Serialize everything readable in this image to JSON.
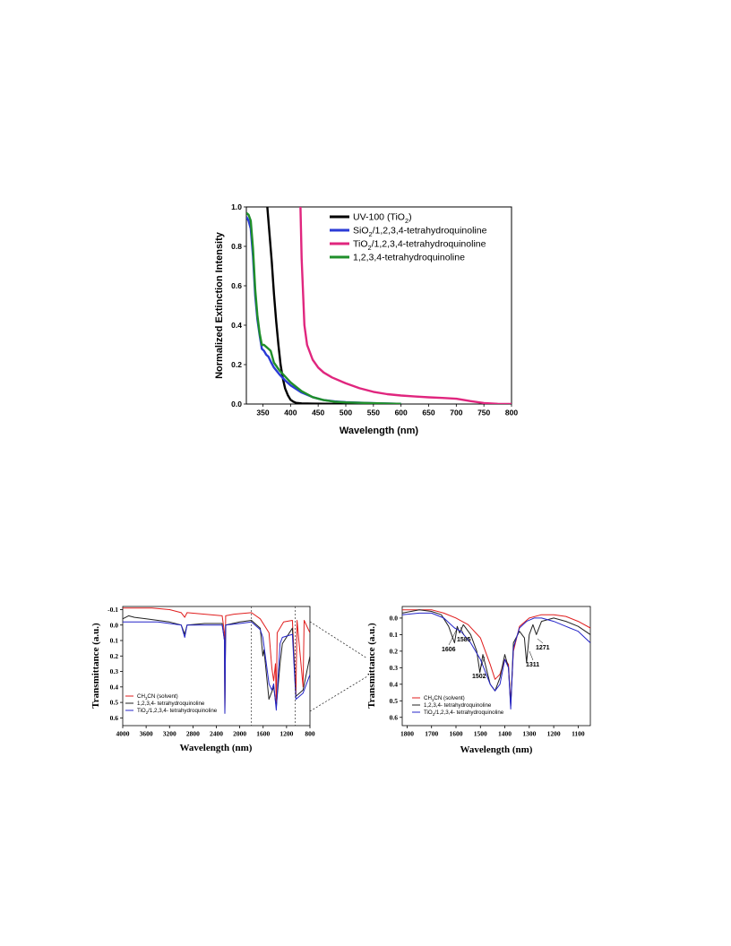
{
  "chart_data": [
    {
      "type": "line",
      "xlabel": "Wavelength (nm)",
      "ylabel": "Normalized Extinction Intensity",
      "xlim": [
        320,
        800
      ],
      "ylim": [
        0,
        1.0
      ],
      "xticks": [
        "350",
        "400",
        "450",
        "500",
        "550",
        "600",
        "650",
        "700",
        "750",
        "800"
      ],
      "yticks": [
        "0.0",
        "0.2",
        "0.4",
        "0.6",
        "0.8",
        "1.0"
      ],
      "legend_position": "top-right",
      "series": [
        {
          "name": "UV-100 (TiO2)",
          "label_main": "UV-100 (TiO",
          "label_sub": "2",
          "label_tail": ")",
          "color": "#000000",
          "x": [
            358,
            362,
            366,
            370,
            374,
            378,
            382,
            386,
            390,
            395,
            400,
            405,
            410,
            420,
            440,
            480,
            520
          ],
          "y": [
            1.0,
            0.86,
            0.72,
            0.56,
            0.42,
            0.3,
            0.2,
            0.13,
            0.08,
            0.045,
            0.022,
            0.012,
            0.006,
            0.003,
            0.002,
            0.001,
            0.0
          ]
        },
        {
          "name": "SiO2/1,2,3,4-tetrahydroquinoline",
          "label_main": "SiO",
          "label_sub": "2",
          "label_tail": "/1,2,3,4-tetrahydroquinoline",
          "color": "#2b3bd6",
          "x": [
            320,
            324,
            328,
            332,
            336,
            340,
            344,
            348,
            352,
            356,
            360,
            365,
            370,
            380,
            390,
            400,
            420,
            440,
            460,
            480,
            500,
            550,
            600
          ],
          "y": [
            0.95,
            0.93,
            0.89,
            0.75,
            0.55,
            0.43,
            0.35,
            0.28,
            0.27,
            0.25,
            0.24,
            0.21,
            0.185,
            0.15,
            0.12,
            0.095,
            0.058,
            0.035,
            0.02,
            0.013,
            0.009,
            0.004,
            0.001
          ]
        },
        {
          "name": "TiO2/1,2,3,4-tetrahydroquinoline",
          "label_main": "TiO",
          "label_sub": "2",
          "label_tail": "/1,2,3,4-tetrahydroquinoline",
          "color": "#e0267e",
          "x": [
            418,
            420,
            425,
            430,
            440,
            450,
            460,
            475,
            500,
            525,
            550,
            575,
            600,
            625,
            650,
            675,
            700,
            725,
            750,
            775,
            800
          ],
          "y": [
            1.0,
            0.74,
            0.4,
            0.3,
            0.225,
            0.185,
            0.16,
            0.135,
            0.105,
            0.08,
            0.062,
            0.05,
            0.043,
            0.038,
            0.034,
            0.031,
            0.027,
            0.015,
            0.005,
            0.001,
            0.0
          ]
        },
        {
          "name": "1,2,3,4-tetrahydroquinoline",
          "label_main": "1,2,3,4-tetrahydroquinoline",
          "label_sub": "",
          "label_tail": "",
          "color": "#1f8f2a",
          "x": [
            320,
            324,
            328,
            332,
            336,
            340,
            344,
            348,
            352,
            356,
            360,
            364,
            370,
            380,
            390,
            400,
            420,
            440,
            460,
            480,
            500,
            550,
            600
          ],
          "y": [
            0.97,
            0.96,
            0.93,
            0.79,
            0.58,
            0.45,
            0.36,
            0.3,
            0.3,
            0.29,
            0.28,
            0.27,
            0.21,
            0.17,
            0.14,
            0.11,
            0.065,
            0.035,
            0.02,
            0.012,
            0.008,
            0.004,
            0.001
          ]
        }
      ]
    },
    {
      "type": "line",
      "xlabel": "Wavelength (nm)",
      "ylabel": "Transmittance (a.u.)",
      "xlim": [
        4000,
        800
      ],
      "ylim": [
        -0.12,
        0.65
      ],
      "x_reversed": true,
      "y_reversed": true,
      "xticks": [
        "4000",
        "3600",
        "3200",
        "2800",
        "2400",
        "2000",
        "1600",
        "1200",
        "800"
      ],
      "yticks": [
        "-0.1",
        "0.0",
        "0.1",
        "0.2",
        "0.3",
        "0.4",
        "0.5",
        "0.6"
      ],
      "legend_position": "bottom-left",
      "zoom_region": [
        1800,
        1050
      ],
      "series": [
        {
          "name": "CH3CN (solvent)",
          "label_main": "CH",
          "label_sub": "3",
          "label_tail": "CN (solvent)",
          "color": "#e01e1e",
          "x": [
            4000,
            3800,
            3500,
            3200,
            3000,
            2940,
            2900,
            2600,
            2300,
            2260,
            2254,
            2240,
            2100,
            1800,
            1650,
            1500,
            1450,
            1420,
            1390,
            1376,
            1360,
            1250,
            1100,
            1041,
            1020,
            918,
            900,
            800
          ],
          "y": [
            -0.11,
            -0.11,
            -0.11,
            -0.1,
            -0.08,
            -0.05,
            -0.08,
            -0.07,
            -0.06,
            0.05,
            0.55,
            -0.06,
            -0.07,
            -0.08,
            -0.04,
            0.05,
            0.28,
            0.36,
            0.25,
            0.52,
            0.05,
            -0.02,
            -0.03,
            0.45,
            -0.03,
            0.4,
            -0.03,
            0.05
          ]
        },
        {
          "name": "1,2,3,4- tetrahydroquinoline",
          "label_main": "1,2,3,4- tetrahydroquinoline",
          "label_sub": "",
          "label_tail": "",
          "color": "#222222",
          "x": [
            4000,
            3900,
            3800,
            3600,
            3400,
            3200,
            3000,
            2940,
            2900,
            2600,
            2300,
            2260,
            2254,
            2240,
            2000,
            1800,
            1650,
            1606,
            1585,
            1502,
            1420,
            1376,
            1311,
            1271,
            1100,
            1041,
            918,
            800
          ],
          "y": [
            -0.04,
            -0.06,
            -0.05,
            -0.04,
            -0.03,
            -0.02,
            0.0,
            0.06,
            0.0,
            -0.01,
            -0.01,
            0.1,
            0.57,
            0.0,
            -0.02,
            -0.03,
            0.02,
            0.2,
            0.16,
            0.48,
            0.4,
            0.53,
            0.25,
            0.12,
            0.02,
            0.46,
            0.42,
            0.2
          ]
        },
        {
          "name": "TiO2/1,2,3,4- tetrahydroquinoline",
          "label_main": "TiO",
          "label_sub": "2",
          "label_tail": "/1,2,3,4- tetrahydroquinoline",
          "color": "#2424c8",
          "x": [
            4000,
            3800,
            3600,
            3400,
            3200,
            3000,
            2940,
            2900,
            2600,
            2300,
            2260,
            2254,
            2240,
            2000,
            1800,
            1650,
            1606,
            1500,
            1450,
            1420,
            1376,
            1311,
            1271,
            1100,
            1041,
            918,
            800
          ],
          "y": [
            -0.02,
            -0.02,
            -0.02,
            -0.02,
            -0.01,
            0.0,
            0.08,
            0.0,
            0.0,
            0.0,
            0.1,
            0.57,
            0.0,
            -0.01,
            -0.02,
            0.03,
            0.08,
            0.38,
            0.42,
            0.38,
            0.55,
            0.12,
            0.08,
            0.06,
            0.48,
            0.44,
            0.32
          ]
        }
      ]
    },
    {
      "type": "line",
      "xlabel": "Wavelength (nm)",
      "ylabel": "Transmittance (a.u.)",
      "xlim": [
        1820,
        1050
      ],
      "ylim": [
        -0.07,
        0.65
      ],
      "x_reversed": true,
      "y_reversed": true,
      "xticks": [
        "1800",
        "1700",
        "1600",
        "1500",
        "1400",
        "1300",
        "1200",
        "1100"
      ],
      "yticks": [
        "0.0",
        "0.1",
        "0.2",
        "0.3",
        "0.4",
        "0.5",
        "0.6"
      ],
      "legend_position": "bottom-left",
      "annotations": [
        "1606",
        "1585",
        "1502",
        "1311",
        "1271"
      ],
      "series": [
        {
          "name": "CH3CN (solvent)",
          "label_main": "CH",
          "label_sub": "3",
          "label_tail": "CN (solvent)",
          "color": "#e01e1e",
          "x": [
            1820,
            1750,
            1700,
            1650,
            1600,
            1550,
            1500,
            1460,
            1440,
            1420,
            1400,
            1385,
            1376,
            1365,
            1340,
            1300,
            1250,
            1200,
            1150,
            1100,
            1050
          ],
          "y": [
            -0.05,
            -0.05,
            -0.05,
            -0.03,
            0.0,
            0.04,
            0.12,
            0.28,
            0.37,
            0.34,
            0.25,
            0.28,
            0.52,
            0.2,
            0.05,
            0.0,
            -0.02,
            -0.02,
            -0.01,
            0.02,
            0.06
          ]
        },
        {
          "name": "1,2,3,4- tetrahydroquinoline",
          "label_main": "1,2,3,4- tetrahydroquinoline",
          "label_sub": "",
          "label_tail": "",
          "color": "#222222",
          "x": [
            1820,
            1750,
            1700,
            1660,
            1630,
            1606,
            1595,
            1585,
            1570,
            1540,
            1515,
            1502,
            1490,
            1460,
            1440,
            1420,
            1400,
            1385,
            1376,
            1365,
            1340,
            1320,
            1311,
            1300,
            1285,
            1271,
            1250,
            1200,
            1150,
            1100,
            1050
          ],
          "y": [
            -0.03,
            -0.05,
            -0.04,
            -0.02,
            0.05,
            0.15,
            0.05,
            0.09,
            0.04,
            0.1,
            0.2,
            0.33,
            0.22,
            0.4,
            0.44,
            0.36,
            0.22,
            0.3,
            0.53,
            0.15,
            0.08,
            0.12,
            0.27,
            0.1,
            0.04,
            0.1,
            0.02,
            0.0,
            0.02,
            0.05,
            0.1
          ]
        },
        {
          "name": "TiO2/1,2,3,4- tetrahydroquinoline",
          "label_main": "TiO",
          "label_sub": "2",
          "label_tail": "/1,2,3,4- tetrahydroquinoline",
          "color": "#2424c8",
          "x": [
            1820,
            1750,
            1700,
            1650,
            1606,
            1580,
            1540,
            1500,
            1460,
            1440,
            1420,
            1400,
            1385,
            1376,
            1365,
            1340,
            1311,
            1280,
            1250,
            1200,
            1150,
            1100,
            1050
          ],
          "y": [
            -0.02,
            -0.03,
            -0.03,
            0.0,
            0.06,
            0.08,
            0.15,
            0.25,
            0.4,
            0.44,
            0.4,
            0.25,
            0.3,
            0.55,
            0.18,
            0.06,
            0.02,
            0.0,
            0.0,
            0.02,
            0.05,
            0.08,
            0.15
          ]
        }
      ]
    }
  ]
}
